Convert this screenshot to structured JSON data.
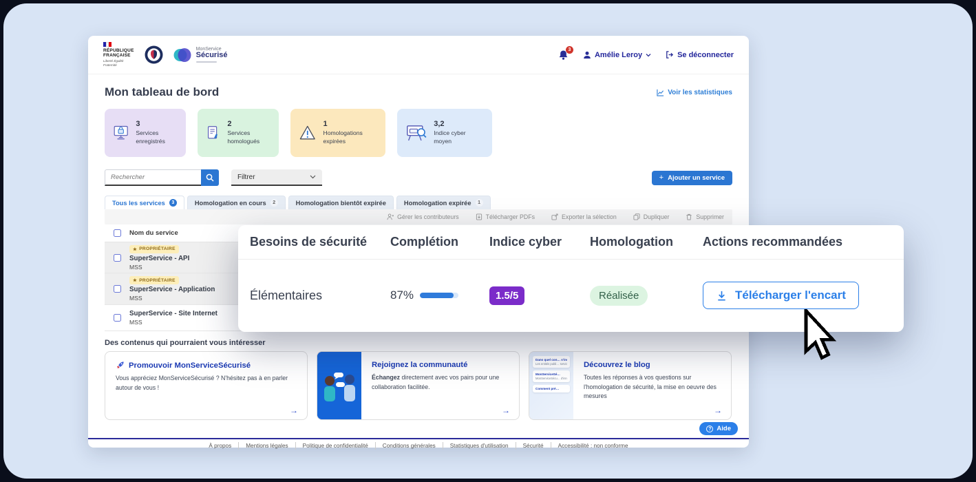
{
  "colors": {
    "primary_blue": "#2b76d2",
    "panel_button_blue": "#2b7fe8",
    "link_blue": "#2e7ed6",
    "brand_navy": "#24279c",
    "purple_badge": "#7b2cc9",
    "green_pill_bg": "#dcf4e1",
    "green_pill_text": "#33614a",
    "notification_red": "#d0352c",
    "stat_purple_bg": "#e7def5",
    "stat_green_bg": "#d9f3df",
    "stat_yellow_bg": "#fce8bd",
    "stat_blue_bg": "#ddeafa",
    "owner_badge_bg": "#fdeeb9"
  },
  "header": {
    "republique_line1": "RÉPUBLIQUE",
    "republique_line2": "FRANÇAISE",
    "motto": "Liberté Égalité Fraternité",
    "app_name_top": "MonService",
    "app_name_bottom": "Sécurisé",
    "notifications_count": "3",
    "user_name": "Amélie Leroy",
    "logout_label": "Se déconnecter"
  },
  "page": {
    "title": "Mon tableau de bord",
    "stats_link": "Voir les statistiques"
  },
  "stats": [
    {
      "value": "3",
      "label": "Services enregistrés",
      "icon": "monitor-lock-icon"
    },
    {
      "value": "2",
      "label": "Services homologués",
      "icon": "document-check-icon"
    },
    {
      "value": "1",
      "label": "Homologations expirées",
      "icon": "warning-triangle-icon"
    },
    {
      "value": "3,2",
      "label": "Indice cyber moyen",
      "icon": "presentation-gauge-icon"
    }
  ],
  "toolbar": {
    "search_placeholder": "Rechercher",
    "filter_label": "Filtrer",
    "add_plus": "+",
    "add_service_label": "Ajouter un service"
  },
  "tabs": [
    {
      "label": "Tous les services",
      "badge": "3"
    },
    {
      "label": "Homologation en cours",
      "badge": "2"
    },
    {
      "label": "Homologation bientôt expirée",
      "badge": ""
    },
    {
      "label": "Homologation expirée",
      "badge": "1"
    }
  ],
  "table_actions": [
    {
      "label": "Gérer les contributeurs"
    },
    {
      "label": "Télécharger PDFs"
    },
    {
      "label": "Exporter la sélection"
    },
    {
      "label": "Dupliquer"
    },
    {
      "label": "Supprimer"
    }
  ],
  "table": {
    "name_column": "Nom du service",
    "owner_star": "★",
    "owner_label": "PROPRIÉTAIRE",
    "rows": [
      {
        "name": "SuperService - API",
        "org": "MSS"
      },
      {
        "name": "SuperService - Application",
        "org": "MSS"
      },
      {
        "name": "SuperService - Site Internet",
        "org": "MSS"
      }
    ]
  },
  "panel": {
    "columns": [
      "Besoins de sécurité",
      "Complétion",
      "Indice cyber",
      "Homologation",
      "Actions recommandées"
    ],
    "row": {
      "besoins": "Élémentaires",
      "completion_label": "87%",
      "completion_value": "87",
      "indice": "1.5/5",
      "homologation": "Réalisée",
      "action": "Télécharger l'encart"
    }
  },
  "content": {
    "title": "Des contenus qui pourraient vous intéresser",
    "arrow": "→",
    "cards": [
      {
        "title": "Promouvoir MonServiceSécurisé",
        "body": "Vous appréciez MonServiceSécurisé ? N'hésitez pas à en parler autour de vous !"
      },
      {
        "title": "Rejoignez la communauté",
        "body_bold": "Échangez",
        "body": " directement avec vos pairs pour une collaboration facilitée."
      },
      {
        "title": "Découvrez le blog",
        "body": "Toutes les réponses à vos questions sur l'homologation de sécurité, la mise en oeuvre des mesures"
      }
    ],
    "blog_preview": [
      {
        "t": "Dans quel con… s'inscrit MonS…",
        "b": "Les entités publi… services publics"
      },
      {
        "t": "MonServiceSé…",
        "b": "MonServiceSécu… d'innovation de"
      },
      {
        "t": "Comment pré…",
        "b": ""
      }
    ]
  },
  "footer": {
    "links": [
      "À propos",
      "Mentions légales",
      "Politique de confidentialité",
      "Conditions générales",
      "Statistiques d'utilisation",
      "Sécurité",
      "Accessibilité : non conforme"
    ],
    "help_icon": "?",
    "help_label": "Aide"
  }
}
